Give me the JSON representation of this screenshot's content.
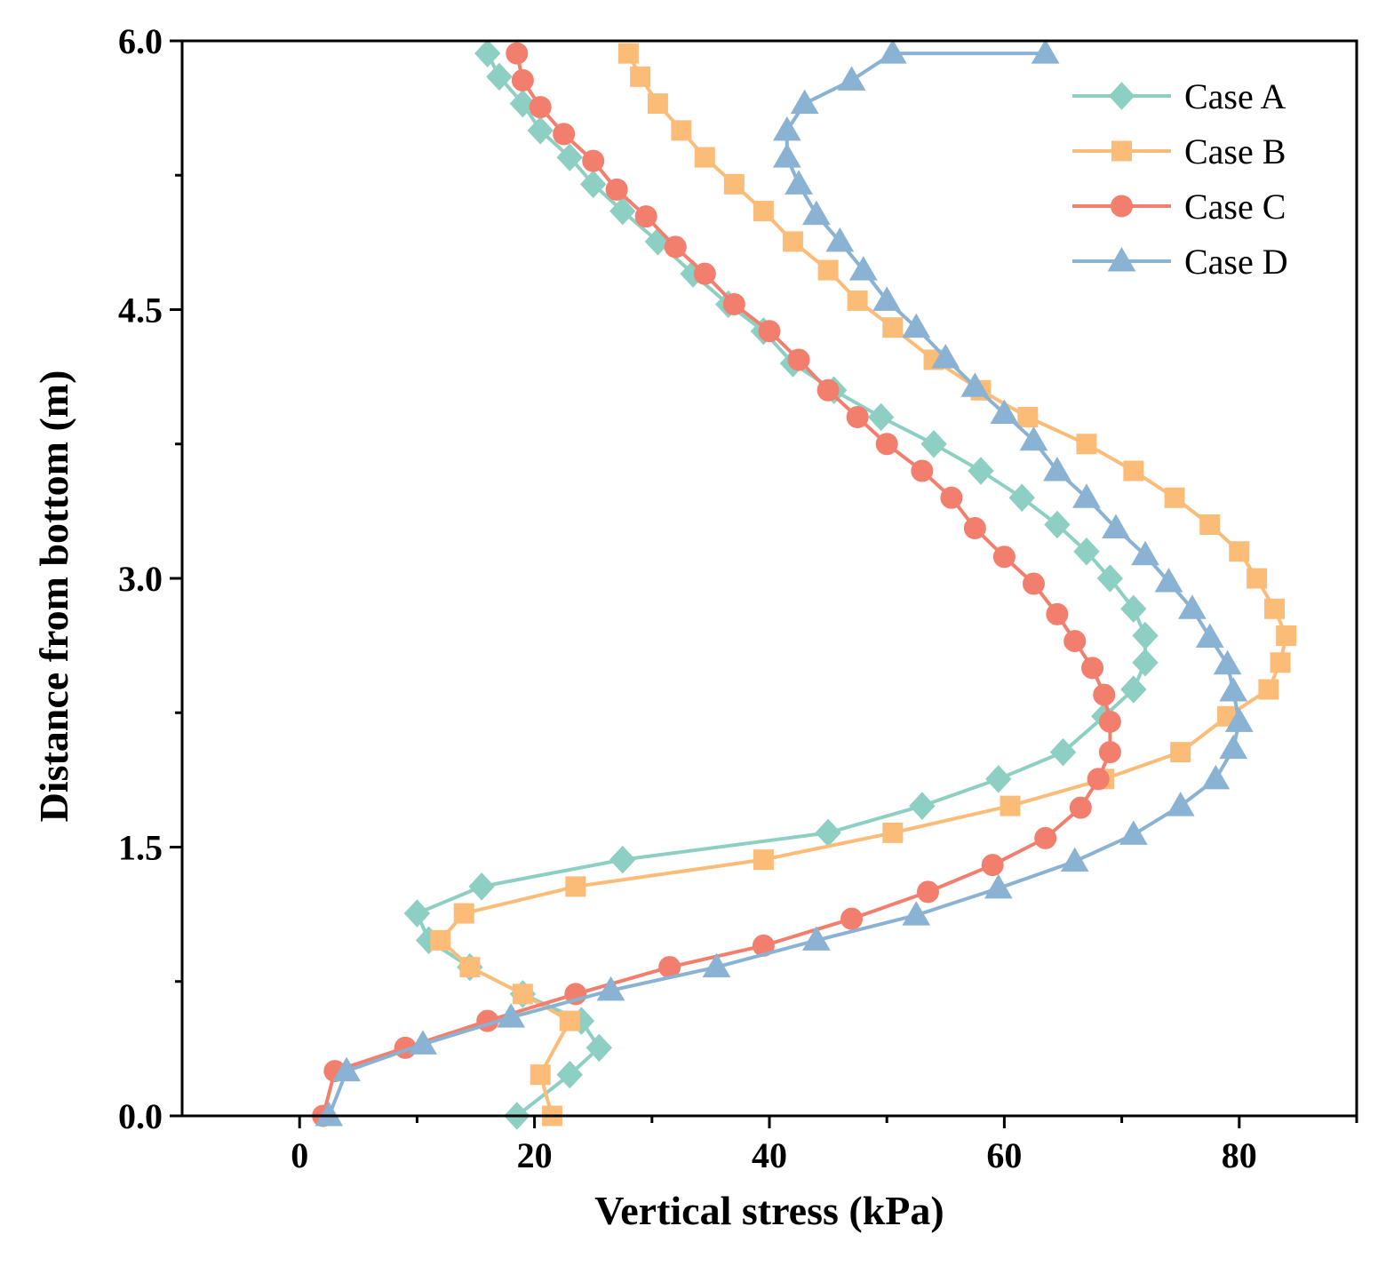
{
  "chart_data": {
    "type": "line",
    "title": "",
    "xlabel": "Vertical stress (kPa)",
    "ylabel": "Distance from bottom (m)",
    "xlim": [
      -10,
      90
    ],
    "ylim": [
      0,
      6
    ],
    "xticks": [
      "0",
      "20",
      "40",
      "60",
      "80"
    ],
    "yticks": [
      "0.0",
      "1.5",
      "3.0",
      "4.5",
      "6.0"
    ],
    "legend_position": "top-right",
    "series": [
      {
        "name": "Case A",
        "color": "#8ecfc4",
        "marker": "diamond",
        "points": [
          [
            18.5,
            0.0
          ],
          [
            23,
            0.23
          ],
          [
            25.5,
            0.38
          ],
          [
            24,
            0.53
          ],
          [
            19,
            0.68
          ],
          [
            14.5,
            0.83
          ],
          [
            11,
            0.98
          ],
          [
            10,
            1.13
          ],
          [
            15.5,
            1.28
          ],
          [
            27.5,
            1.43
          ],
          [
            45,
            1.58
          ],
          [
            53,
            1.73
          ],
          [
            59.5,
            1.88
          ],
          [
            65,
            2.03
          ],
          [
            68.5,
            2.23
          ],
          [
            71,
            2.38
          ],
          [
            72,
            2.53
          ],
          [
            72,
            2.68
          ],
          [
            71,
            2.83
          ],
          [
            69,
            3.0
          ],
          [
            67,
            3.15
          ],
          [
            64.5,
            3.3
          ],
          [
            61.5,
            3.45
          ],
          [
            58,
            3.6
          ],
          [
            54,
            3.75
          ],
          [
            49.5,
            3.9
          ],
          [
            45.5,
            4.05
          ],
          [
            42,
            4.2
          ],
          [
            39.5,
            4.38
          ],
          [
            36.5,
            4.53
          ],
          [
            33.5,
            4.7
          ],
          [
            30.5,
            4.88
          ],
          [
            27.5,
            5.05
          ],
          [
            25,
            5.2
          ],
          [
            23,
            5.35
          ],
          [
            20.5,
            5.5
          ],
          [
            19,
            5.65
          ],
          [
            17,
            5.8
          ],
          [
            16,
            5.93
          ]
        ]
      },
      {
        "name": "Case B",
        "color": "#fbbc78",
        "marker": "square",
        "points": [
          [
            21.5,
            0.0
          ],
          [
            20.5,
            0.23
          ],
          [
            23,
            0.53
          ],
          [
            19,
            0.68
          ],
          [
            14.5,
            0.83
          ],
          [
            12,
            0.98
          ],
          [
            14,
            1.13
          ],
          [
            23.5,
            1.28
          ],
          [
            39.5,
            1.43
          ],
          [
            50.5,
            1.58
          ],
          [
            60.5,
            1.73
          ],
          [
            68.5,
            1.88
          ],
          [
            75,
            2.03
          ],
          [
            79,
            2.23
          ],
          [
            82.5,
            2.38
          ],
          [
            83.5,
            2.53
          ],
          [
            84,
            2.68
          ],
          [
            83,
            2.83
          ],
          [
            81.5,
            3.0
          ],
          [
            80,
            3.15
          ],
          [
            77.5,
            3.3
          ],
          [
            74.5,
            3.45
          ],
          [
            71,
            3.6
          ],
          [
            67,
            3.75
          ],
          [
            62,
            3.9
          ],
          [
            58,
            4.05
          ],
          [
            54,
            4.22
          ],
          [
            50.5,
            4.4
          ],
          [
            47.5,
            4.55
          ],
          [
            45,
            4.72
          ],
          [
            42,
            4.88
          ],
          [
            39.5,
            5.05
          ],
          [
            37,
            5.2
          ],
          [
            34.5,
            5.35
          ],
          [
            32.5,
            5.5
          ],
          [
            30.5,
            5.65
          ],
          [
            29,
            5.8
          ],
          [
            28,
            5.93
          ]
        ]
      },
      {
        "name": "Case C",
        "color": "#f27f6d",
        "marker": "circle",
        "points": [
          [
            2,
            0.0
          ],
          [
            3,
            0.25
          ],
          [
            9,
            0.38
          ],
          [
            16,
            0.53
          ],
          [
            23.5,
            0.68
          ],
          [
            31.5,
            0.83
          ],
          [
            39.5,
            0.95
          ],
          [
            47,
            1.1
          ],
          [
            53.5,
            1.25
          ],
          [
            59,
            1.4
          ],
          [
            63.5,
            1.55
          ],
          [
            66.5,
            1.72
          ],
          [
            68,
            1.88
          ],
          [
            69,
            2.03
          ],
          [
            69,
            2.2
          ],
          [
            68.5,
            2.35
          ],
          [
            67.5,
            2.5
          ],
          [
            66,
            2.65
          ],
          [
            64.5,
            2.8
          ],
          [
            62.5,
            2.97
          ],
          [
            60,
            3.12
          ],
          [
            57.5,
            3.28
          ],
          [
            55.5,
            3.45
          ],
          [
            53,
            3.6
          ],
          [
            50,
            3.75
          ],
          [
            47.5,
            3.9
          ],
          [
            45,
            4.05
          ],
          [
            42.5,
            4.22
          ],
          [
            40,
            4.38
          ],
          [
            37,
            4.53
          ],
          [
            34.5,
            4.7
          ],
          [
            32,
            4.85
          ],
          [
            29.5,
            5.02
          ],
          [
            27,
            5.17
          ],
          [
            25,
            5.33
          ],
          [
            22.5,
            5.48
          ],
          [
            20.5,
            5.63
          ],
          [
            19,
            5.78
          ],
          [
            18.5,
            5.93
          ]
        ]
      },
      {
        "name": "Case D",
        "color": "#8ab2d3",
        "marker": "triangle",
        "points": [
          [
            2.5,
            0.0
          ],
          [
            4,
            0.25
          ],
          [
            10.5,
            0.4
          ],
          [
            18,
            0.55
          ],
          [
            26.5,
            0.7
          ],
          [
            35.5,
            0.83
          ],
          [
            44,
            0.98
          ],
          [
            52.5,
            1.12
          ],
          [
            59.5,
            1.27
          ],
          [
            66,
            1.42
          ],
          [
            71,
            1.57
          ],
          [
            75,
            1.73
          ],
          [
            78,
            1.88
          ],
          [
            79.5,
            2.05
          ],
          [
            80,
            2.2
          ],
          [
            79.5,
            2.37
          ],
          [
            79,
            2.52
          ],
          [
            77.5,
            2.67
          ],
          [
            76,
            2.83
          ],
          [
            74,
            2.98
          ],
          [
            72,
            3.13
          ],
          [
            69.5,
            3.28
          ],
          [
            67,
            3.45
          ],
          [
            64.5,
            3.6
          ],
          [
            62.5,
            3.77
          ],
          [
            60,
            3.92
          ],
          [
            57.5,
            4.07
          ],
          [
            55,
            4.23
          ],
          [
            52.5,
            4.4
          ],
          [
            50,
            4.55
          ],
          [
            48,
            4.72
          ],
          [
            46,
            4.88
          ],
          [
            44,
            5.03
          ],
          [
            42.5,
            5.2
          ],
          [
            41.5,
            5.35
          ],
          [
            41.5,
            5.5
          ],
          [
            43,
            5.65
          ],
          [
            47,
            5.78
          ],
          [
            50.5,
            5.93
          ],
          [
            63.5,
            5.93
          ]
        ]
      }
    ]
  }
}
